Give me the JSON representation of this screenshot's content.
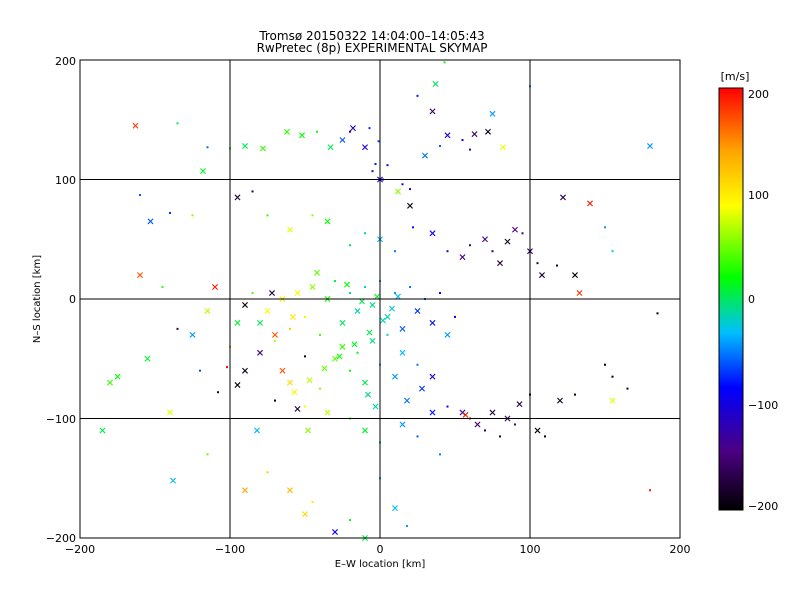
{
  "chart_data": {
    "type": "scatter",
    "title": "Tromsø 20150322 14:04:00–14:05:43",
    "subtitle": "RwPretec (8p) EXPERIMENTAL SKYMAP",
    "xlabel": "E–W location [km]",
    "ylabel": "N–S location [km]",
    "xlim": [
      -200,
      200
    ],
    "ylim": [
      -200,
      200
    ],
    "xticks": [
      "−200",
      "−100",
      "0",
      "100",
      "200"
    ],
    "yticks": [
      "−200",
      "−100",
      "0",
      "100",
      "200"
    ],
    "grid": true,
    "colorbar": {
      "label": "[m/s]",
      "range": [
        -200,
        200
      ],
      "ticks": [
        "200",
        "100",
        "0",
        "−100",
        "−200"
      ],
      "colormap": [
        "#000000",
        "#4b0082",
        "#0000ff",
        "#00bfff",
        "#00ff00",
        "#ffff00",
        "#ffa500",
        "#ff0000"
      ]
    },
    "marker_types": [
      "dot",
      "cross"
    ],
    "points": [
      [
        -163,
        145,
        180,
        "x"
      ],
      [
        -135,
        147,
        10,
        "d"
      ],
      [
        -115,
        127,
        -50,
        "d"
      ],
      [
        -118,
        107,
        20,
        "x"
      ],
      [
        -100,
        126,
        30,
        "d"
      ],
      [
        -90,
        128,
        10,
        "x"
      ],
      [
        -78,
        126,
        40,
        "x"
      ],
      [
        -62,
        140,
        40,
        "x"
      ],
      [
        -52,
        137,
        30,
        "x"
      ],
      [
        -42,
        140,
        30,
        "d"
      ],
      [
        -33,
        127,
        10,
        "x"
      ],
      [
        -25,
        133,
        -60,
        "x"
      ],
      [
        -20,
        140,
        -150,
        "d"
      ],
      [
        -18,
        143,
        -120,
        "x"
      ],
      [
        -10,
        127,
        -110,
        "x"
      ],
      [
        -5,
        107,
        -110,
        "d"
      ],
      [
        0,
        100,
        -110,
        "x"
      ],
      [
        -3,
        113,
        -80,
        "d"
      ],
      [
        2,
        100,
        -120,
        "d"
      ],
      [
        5,
        112,
        -100,
        "d"
      ],
      [
        -7,
        143,
        -70,
        "d"
      ],
      [
        -1,
        132,
        -60,
        "d"
      ],
      [
        15,
        96,
        -100,
        "d"
      ],
      [
        20,
        92,
        -110,
        "d"
      ],
      [
        12,
        90,
        60,
        "x"
      ],
      [
        25,
        170,
        -80,
        "d"
      ],
      [
        37,
        180,
        10,
        "x"
      ],
      [
        43,
        198,
        30,
        "d"
      ],
      [
        35,
        157,
        -160,
        "x"
      ],
      [
        30,
        120,
        -50,
        "x"
      ],
      [
        40,
        128,
        -60,
        "d"
      ],
      [
        45,
        137,
        -100,
        "x"
      ],
      [
        55,
        133,
        -90,
        "d"
      ],
      [
        60,
        125,
        -120,
        "d"
      ],
      [
        63,
        138,
        -160,
        "x"
      ],
      [
        72,
        140,
        -190,
        "x"
      ],
      [
        75,
        155,
        -40,
        "x"
      ],
      [
        82,
        127,
        80,
        "x"
      ],
      [
        100,
        178,
        -40,
        "d"
      ],
      [
        180,
        128,
        -40,
        "x"
      ],
      [
        -160,
        87,
        -60,
        "d"
      ],
      [
        -140,
        72,
        -70,
        "d"
      ],
      [
        -153,
        65,
        -60,
        "x"
      ],
      [
        -125,
        70,
        60,
        "d"
      ],
      [
        -95,
        85,
        -180,
        "x"
      ],
      [
        -85,
        90,
        -170,
        "d"
      ],
      [
        -75,
        70,
        40,
        "d"
      ],
      [
        -60,
        58,
        80,
        "x"
      ],
      [
        -45,
        70,
        60,
        "d"
      ],
      [
        -35,
        65,
        30,
        "x"
      ],
      [
        -20,
        45,
        10,
        "d"
      ],
      [
        -10,
        55,
        -10,
        "d"
      ],
      [
        0,
        50,
        -30,
        "x"
      ],
      [
        10,
        40,
        -50,
        "d"
      ],
      [
        20,
        78,
        -190,
        "x"
      ],
      [
        22,
        60,
        -80,
        "d"
      ],
      [
        35,
        55,
        -90,
        "x"
      ],
      [
        45,
        40,
        -120,
        "d"
      ],
      [
        55,
        35,
        -140,
        "x"
      ],
      [
        60,
        45,
        -150,
        "d"
      ],
      [
        70,
        50,
        -140,
        "x"
      ],
      [
        75,
        40,
        -160,
        "d"
      ],
      [
        80,
        30,
        -170,
        "x"
      ],
      [
        85,
        48,
        -190,
        "x"
      ],
      [
        90,
        58,
        -140,
        "x"
      ],
      [
        95,
        55,
        -130,
        "d"
      ],
      [
        100,
        40,
        -160,
        "x"
      ],
      [
        105,
        30,
        -170,
        "d"
      ],
      [
        108,
        20,
        -180,
        "x"
      ],
      [
        118,
        28,
        -180,
        "d"
      ],
      [
        122,
        85,
        -170,
        "x"
      ],
      [
        130,
        20,
        -200,
        "x"
      ],
      [
        140,
        80,
        190,
        "x"
      ],
      [
        150,
        60,
        -40,
        "d"
      ],
      [
        155,
        40,
        -20,
        "d"
      ],
      [
        133,
        5,
        180,
        "x"
      ],
      [
        -160,
        20,
        170,
        "x"
      ],
      [
        -145,
        10,
        40,
        "d"
      ],
      [
        -135,
        -25,
        -160,
        "d"
      ],
      [
        -125,
        -30,
        -40,
        "x"
      ],
      [
        -115,
        -10,
        70,
        "x"
      ],
      [
        -110,
        10,
        190,
        "x"
      ],
      [
        -100,
        -40,
        150,
        "d"
      ],
      [
        -95,
        -20,
        20,
        "x"
      ],
      [
        -90,
        -5,
        -190,
        "x"
      ],
      [
        -85,
        5,
        50,
        "d"
      ],
      [
        -80,
        -20,
        10,
        "x"
      ],
      [
        -75,
        -10,
        90,
        "x"
      ],
      [
        -70,
        -35,
        70,
        "d"
      ],
      [
        -65,
        0,
        100,
        "x"
      ],
      [
        -60,
        -25,
        120,
        "d"
      ],
      [
        -55,
        5,
        90,
        "x"
      ],
      [
        -50,
        -15,
        80,
        "d"
      ],
      [
        -45,
        10,
        60,
        "x"
      ],
      [
        -40,
        -30,
        40,
        "d"
      ],
      [
        -35,
        0,
        30,
        "x"
      ],
      [
        -30,
        15,
        20,
        "d"
      ],
      [
        -25,
        -20,
        10,
        "x"
      ],
      [
        -20,
        5,
        0,
        "d"
      ],
      [
        -15,
        -10,
        -10,
        "x"
      ],
      [
        -10,
        10,
        -20,
        "d"
      ],
      [
        -5,
        -5,
        0,
        "x"
      ],
      [
        0,
        15,
        -30,
        "d"
      ],
      [
        5,
        -15,
        -10,
        "x"
      ],
      [
        10,
        5,
        -40,
        "d"
      ],
      [
        15,
        -25,
        -60,
        "x"
      ],
      [
        20,
        10,
        -50,
        "d"
      ],
      [
        25,
        -10,
        -70,
        "x"
      ],
      [
        30,
        0,
        -60,
        "d"
      ],
      [
        35,
        -20,
        -80,
        "x"
      ],
      [
        40,
        5,
        -90,
        "d"
      ],
      [
        45,
        -30,
        -40,
        "x"
      ],
      [
        50,
        -15,
        -100,
        "d"
      ],
      [
        -30,
        -50,
        50,
        "x"
      ],
      [
        -20,
        -60,
        30,
        "d"
      ],
      [
        -10,
        -70,
        10,
        "x"
      ],
      [
        0,
        -55,
        -20,
        "d"
      ],
      [
        10,
        -65,
        -40,
        "x"
      ],
      [
        -40,
        -75,
        60,
        "d"
      ],
      [
        -25,
        -40,
        40,
        "x"
      ],
      [
        -15,
        -45,
        20,
        "d"
      ],
      [
        -5,
        -35,
        0,
        "x"
      ],
      [
        5,
        -30,
        -10,
        "d"
      ],
      [
        15,
        -45,
        -30,
        "x"
      ],
      [
        25,
        -55,
        -50,
        "d"
      ],
      [
        -60,
        -70,
        110,
        "x"
      ],
      [
        -50,
        -90,
        90,
        "d"
      ],
      [
        -35,
        -95,
        70,
        "x"
      ],
      [
        -20,
        -100,
        40,
        "d"
      ],
      [
        -10,
        -110,
        20,
        "x"
      ],
      [
        0,
        -120,
        -10,
        "d"
      ],
      [
        15,
        -105,
        -40,
        "x"
      ],
      [
        25,
        -115,
        -60,
        "d"
      ],
      [
        35,
        -95,
        -80,
        "x"
      ],
      [
        45,
        -90,
        -100,
        "d"
      ],
      [
        55,
        -95,
        -120,
        "x"
      ],
      [
        57,
        -97,
        190,
        "x"
      ],
      [
        60,
        -100,
        200,
        "d"
      ],
      [
        65,
        -105,
        -150,
        "x"
      ],
      [
        70,
        -110,
        -160,
        "d"
      ],
      [
        75,
        -95,
        -170,
        "x"
      ],
      [
        80,
        -115,
        -180,
        "d"
      ],
      [
        85,
        -100,
        -160,
        "x"
      ],
      [
        90,
        -105,
        -150,
        "d"
      ],
      [
        93,
        -88,
        -170,
        "x"
      ],
      [
        100,
        -80,
        -190,
        "d"
      ],
      [
        105,
        -110,
        -200,
        "x"
      ],
      [
        110,
        -115,
        -200,
        "d"
      ],
      [
        120,
        -85,
        -180,
        "x"
      ],
      [
        130,
        -80,
        -200,
        "d"
      ],
      [
        150,
        -55,
        -200,
        "d"
      ],
      [
        155,
        -85,
        80,
        "x"
      ],
      [
        165,
        -75,
        -180,
        "d"
      ],
      [
        -185,
        -110,
        10,
        "x"
      ],
      [
        -180,
        -70,
        40,
        "x"
      ],
      [
        -175,
        -65,
        30,
        "x"
      ],
      [
        -155,
        -50,
        20,
        "x"
      ],
      [
        -140,
        -95,
        80,
        "x"
      ],
      [
        -138,
        -152,
        -30,
        "x"
      ],
      [
        -115,
        -130,
        50,
        "d"
      ],
      [
        -90,
        -160,
        140,
        "x"
      ],
      [
        -75,
        -145,
        120,
        "d"
      ],
      [
        -60,
        -160,
        130,
        "x"
      ],
      [
        -50,
        -180,
        110,
        "x"
      ],
      [
        -45,
        -170,
        100,
        "d"
      ],
      [
        -30,
        -195,
        -90,
        "x"
      ],
      [
        -20,
        -185,
        30,
        "d"
      ],
      [
        -10,
        -200,
        10,
        "x"
      ],
      [
        0,
        -150,
        -20,
        "d"
      ],
      [
        10,
        -175,
        -30,
        "x"
      ],
      [
        18,
        -190,
        -40,
        "d"
      ],
      [
        40,
        -130,
        -50,
        "d"
      ],
      [
        -102,
        -57,
        210,
        "d"
      ],
      [
        -65,
        -60,
        170,
        "x"
      ],
      [
        -48,
        -110,
        60,
        "x"
      ],
      [
        -82,
        -110,
        -30,
        "x"
      ],
      [
        -120,
        -60,
        -60,
        "d"
      ],
      [
        -108,
        -78,
        -180,
        "d"
      ],
      [
        35,
        -65,
        -110,
        "x"
      ],
      [
        -2,
        2,
        20,
        "x"
      ],
      [
        -12,
        -2,
        10,
        "x"
      ],
      [
        8,
        -8,
        -20,
        "x"
      ],
      [
        -22,
        12,
        30,
        "x"
      ],
      [
        -42,
        22,
        50,
        "x"
      ],
      [
        -58,
        -15,
        100,
        "x"
      ],
      [
        2,
        -18,
        -10,
        "x"
      ],
      [
        12,
        2,
        -30,
        "x"
      ],
      [
        -7,
        -28,
        10,
        "x"
      ],
      [
        -17,
        -38,
        20,
        "x"
      ],
      [
        -27,
        -48,
        30,
        "x"
      ],
      [
        -37,
        -58,
        50,
        "x"
      ],
      [
        -47,
        -68,
        70,
        "x"
      ],
      [
        -57,
        -78,
        90,
        "x"
      ],
      [
        -8,
        -80,
        0,
        "x"
      ],
      [
        -3,
        -90,
        -10,
        "x"
      ],
      [
        18,
        -85,
        -50,
        "x"
      ],
      [
        28,
        -75,
        -70,
        "x"
      ],
      [
        -70,
        -30,
        170,
        "x"
      ],
      [
        -72,
        5,
        -170,
        "x"
      ],
      [
        -80,
        -45,
        -150,
        "x"
      ],
      [
        -90,
        -60,
        -190,
        "x"
      ],
      [
        -95,
        -72,
        -200,
        "x"
      ],
      [
        -70,
        -85,
        -200,
        "d"
      ],
      [
        -55,
        -92,
        -180,
        "x"
      ],
      [
        -50,
        -48,
        -190,
        "d"
      ],
      [
        180,
        -160,
        190,
        "d"
      ],
      [
        185,
        -12,
        -200,
        "d"
      ],
      [
        155,
        -65,
        -200,
        "d"
      ]
    ]
  }
}
